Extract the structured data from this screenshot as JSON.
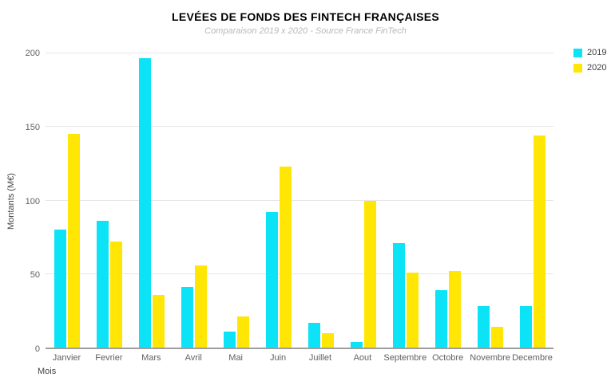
{
  "chart_data": {
    "type": "bar",
    "title": "LEVÉES DE FONDS DES FINTECH FRANÇAISES",
    "subtitle": "Comparaison 2019 x 2020  - Source France FinTech",
    "xlabel": "Mois",
    "ylabel": "Montants (M€)",
    "categories": [
      "Janvier",
      "Fevrier",
      "Mars",
      "Avril",
      "Mai",
      "Juin",
      "Juillet",
      "Aout",
      "Septembre",
      "Octobre",
      "Novembre",
      "Decembre"
    ],
    "series": [
      {
        "name": "2019",
        "color": "#0ce3f7",
        "values": [
          80,
          86,
          197,
          41,
          11,
          92,
          17,
          4,
          71,
          39,
          28,
          28
        ]
      },
      {
        "name": "2020",
        "color": "#ffe605",
        "values": [
          145,
          72,
          36,
          56,
          21,
          123,
          10,
          100,
          51,
          52,
          14,
          144
        ]
      }
    ],
    "ylim": [
      0,
      200
    ],
    "yticks": [
      0,
      50,
      100,
      150,
      200
    ],
    "grid": true,
    "legend_position": "top-right",
    "colors": {
      "background": "#ffffff",
      "gridline": "#e6e6e6",
      "axis_line": "#9e9e9e"
    }
  }
}
